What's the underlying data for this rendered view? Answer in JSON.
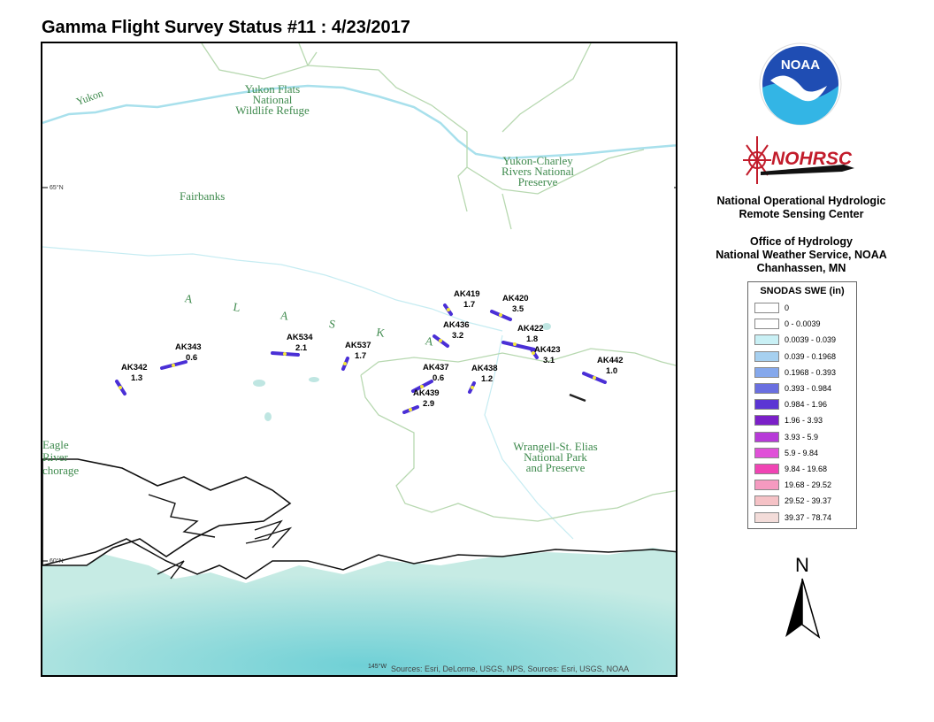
{
  "title": "Gamma Flight Survey Status #11 : 4/23/2017",
  "map": {
    "place_labels": {
      "yukon": "Yukon",
      "yukon_flats": [
        "Yukon Flats",
        "National",
        "Wildlife Refuge"
      ],
      "yukon_charley": [
        "Yukon-Charley",
        "Rivers National",
        "Preserve"
      ],
      "fairbanks": "Fairbanks",
      "alaska": "A L A S K A",
      "wrangell": [
        "Wrangell-St. Elias",
        "National Park",
        "and Preserve"
      ],
      "eagle_river": [
        "Eagle",
        "River"
      ],
      "anchorage": "chorage"
    },
    "lat_labels": [
      "65°N",
      "60°N"
    ],
    "lon_label": "145°W",
    "credits": "Sources: Esri, DeLorme, USGS, NPS, Sources: Esri, USGS, NOAA",
    "flights": [
      {
        "id": "AK342",
        "value": "1.3"
      },
      {
        "id": "AK343",
        "value": "0.6"
      },
      {
        "id": "AK534",
        "value": "2.1"
      },
      {
        "id": "AK537",
        "value": "1.7"
      },
      {
        "id": "AK419",
        "value": "1.7"
      },
      {
        "id": "AK420",
        "value": "3.5"
      },
      {
        "id": "AK436",
        "value": "3.2"
      },
      {
        "id": "AK422",
        "value": "1.8"
      },
      {
        "id": "AK423",
        "value": "3.1"
      },
      {
        "id": "AK442",
        "value": "1.0"
      },
      {
        "id": "AK437",
        "value": "0.6"
      },
      {
        "id": "AK438",
        "value": "1.2"
      },
      {
        "id": "AK439",
        "value": "2.9"
      }
    ]
  },
  "logos": {
    "noaa": "NOAA",
    "nohrsc": "NOHRSC"
  },
  "organization": {
    "line1": "National Operational Hydrologic",
    "line2": "Remote Sensing Center",
    "line3": "Office of Hydrology",
    "line4": "National Weather Service, NOAA",
    "line5": "Chanhassen, MN"
  },
  "legend": {
    "title": "SNODAS SWE (in)",
    "classes": [
      {
        "label": "0",
        "color": "#ffffff"
      },
      {
        "label": "0 - 0.0039",
        "color": "#ffffff"
      },
      {
        "label": "0.0039 - 0.039",
        "color": "#c9f0f5"
      },
      {
        "label": "0.039 - 0.1968",
        "color": "#a6d0f0"
      },
      {
        "label": "0.1968 - 0.393",
        "color": "#85a8ec"
      },
      {
        "label": "0.393 - 0.984",
        "color": "#6a6fe0"
      },
      {
        "label": "0.984 - 1.96",
        "color": "#5b35d4"
      },
      {
        "label": "1.96 - 3.93",
        "color": "#7b1fc8"
      },
      {
        "label": "3.93 - 5.9",
        "color": "#b73ad8"
      },
      {
        "label": "5.9 - 9.84",
        "color": "#e050d8"
      },
      {
        "label": "9.84 - 19.68",
        "color": "#f044b4"
      },
      {
        "label": "19.68 - 29.52",
        "color": "#f59ac0"
      },
      {
        "label": "29.52 - 39.37",
        "color": "#f5c2c6"
      },
      {
        "label": "39.37 - 78.74",
        "color": "#f3dcd9"
      }
    ]
  },
  "north_arrow": "N",
  "colors": {
    "flight_line": "#4a2fd6",
    "flight_point": "#f2e63a",
    "river": "#a8e0ec",
    "boundary": "#b7d8b0",
    "ocean_light": "#bfe6e2",
    "ocean_dark": "#77d2d8"
  }
}
